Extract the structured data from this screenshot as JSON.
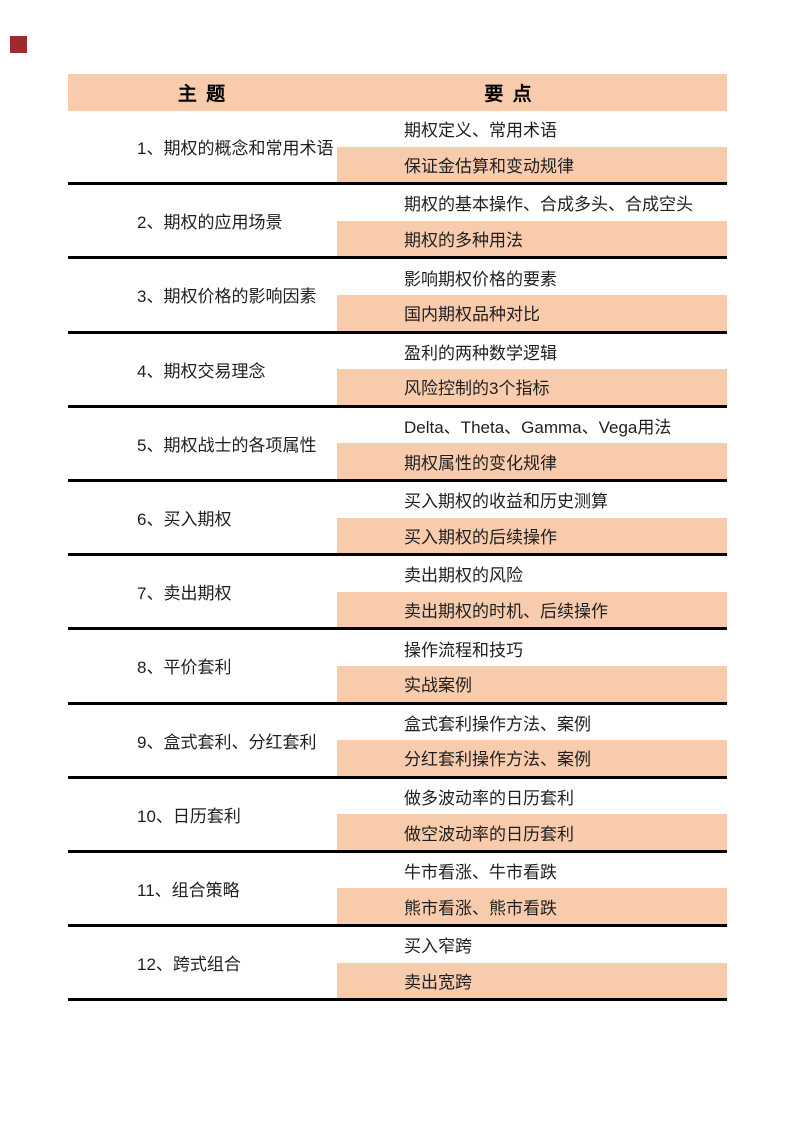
{
  "page": {
    "background": "#FFFFFF"
  },
  "decorations": {
    "top_left_marker_color": "#9E2A2B"
  },
  "table": {
    "colors": {
      "header_bg": "#F8CBAD",
      "highlight_bg": "#F8CBAD",
      "separator_line": "#000000",
      "text": "#1F1F1F"
    },
    "header": {
      "topic": "主 题",
      "points": "要 点"
    },
    "rows": [
      {
        "topic": "1、期权的概念和常用术语",
        "point1": "期权定义、常用术语",
        "point2": "保证金估算和变动规律"
      },
      {
        "topic": "2、期权的应用场景",
        "point1": "期权的基本操作、合成多头、合成空头",
        "point2": "期权的多种用法"
      },
      {
        "topic": "3、期权价格的影响因素",
        "point1": "影响期权价格的要素",
        "point2": "国内期权品种对比"
      },
      {
        "topic": "4、期权交易理念",
        "point1": "盈利的两种数学逻辑",
        "point2": "风险控制的3个指标"
      },
      {
        "topic": "5、期权战士的各项属性",
        "point1": "Delta、Theta、Gamma、Vega用法",
        "point2": "期权属性的变化规律"
      },
      {
        "topic": "6、买入期权",
        "point1": "买入期权的收益和历史测算",
        "point2": "买入期权的后续操作"
      },
      {
        "topic": "7、卖出期权",
        "point1": "卖出期权的风险",
        "point2": "卖出期权的时机、后续操作"
      },
      {
        "topic": "8、平价套利",
        "point1": "操作流程和技巧",
        "point2": "实战案例"
      },
      {
        "topic": "9、盒式套利、分红套利",
        "point1": "盒式套利操作方法、案例",
        "point2": "分红套利操作方法、案例"
      },
      {
        "topic": "10、日历套利",
        "point1": "做多波动率的日历套利",
        "point2": "做空波动率的日历套利"
      },
      {
        "topic": "11、组合策略",
        "point1": "牛市看涨、牛市看跌",
        "point2": "熊市看涨、熊市看跌"
      },
      {
        "topic": "12、跨式组合",
        "point1": "买入窄跨",
        "point2": "卖出宽跨"
      }
    ]
  }
}
